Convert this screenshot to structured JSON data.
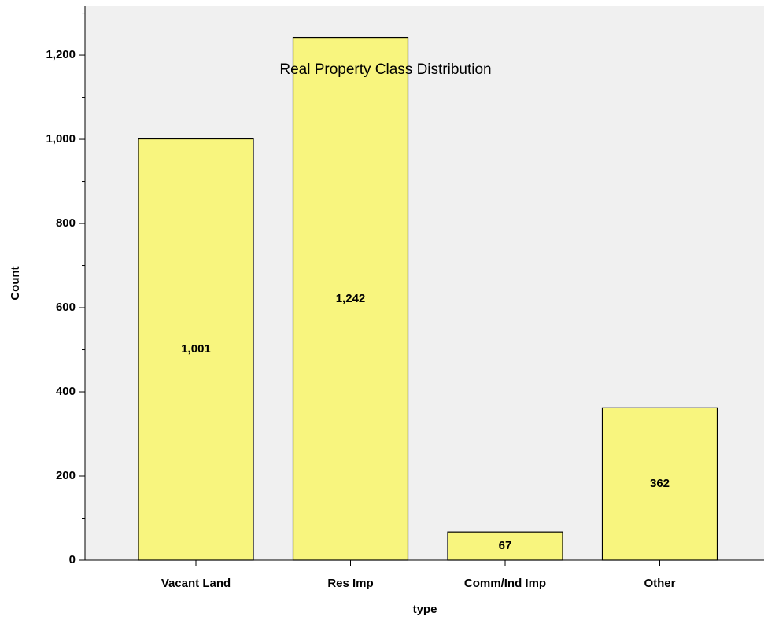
{
  "chart_data": {
    "type": "bar",
    "title": "Real Property Class Distribution",
    "x_label": "type",
    "y_label": "Count",
    "categories": [
      "Vacant Land",
      "Res Imp",
      "Comm/Ind Imp",
      "Other"
    ],
    "values": [
      1001,
      1242,
      67,
      362
    ],
    "value_labels": [
      "1,001",
      "1,242",
      "67",
      "362"
    ],
    "color": "#f8f57e",
    "ylim": [
      0,
      1316
    ],
    "yticks": [
      0,
      200,
      400,
      600,
      800,
      {
        "value": 1000,
        "label": "1,000"
      },
      {
        "value": 1200,
        "label": "1,200"
      }
    ],
    "yminorticks": [
      100,
      300,
      500,
      700,
      900,
      1100,
      1300
    ],
    "background": "#f0f0f0"
  }
}
